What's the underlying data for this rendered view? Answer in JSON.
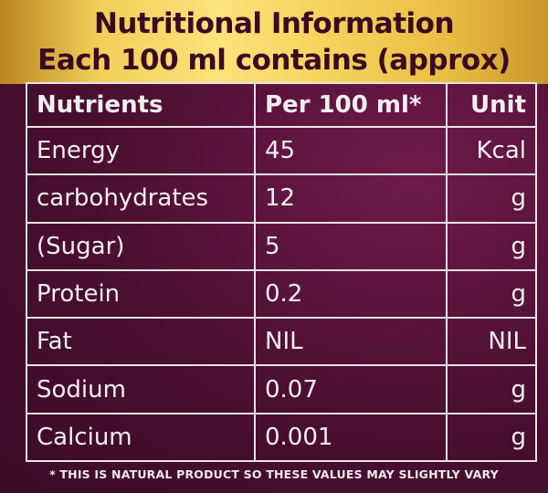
{
  "header": {
    "title": "Nutritional Information",
    "subtitle": "Each 100 ml contains (approx)"
  },
  "table": {
    "columns": [
      "Nutrients",
      "Per 100 ml*",
      "Unit"
    ],
    "rows": [
      {
        "nutrient": "Energy",
        "value": "45",
        "unit": "Kcal"
      },
      {
        "nutrient": "carbohydrates",
        "value": "12",
        "unit": "g"
      },
      {
        "nutrient": "(Sugar)",
        "value": "5",
        "unit": "g"
      },
      {
        "nutrient": "Protein",
        "value": "0.2",
        "unit": "g"
      },
      {
        "nutrient": "Fat",
        "value": "NIL",
        "unit": "NIL"
      },
      {
        "nutrient": "Sodium",
        "value": "0.07",
        "unit": "g"
      },
      {
        "nutrient": "Calcium",
        "value": "0.001",
        "unit": "g"
      }
    ]
  },
  "footnote": "* THIS IS NATURAL  PRODUCT SO THESE VALUES MAY SLIGHTLY VARY",
  "colors": {
    "header_gold": "#f6d35c",
    "background_maroon": "#4a0f30",
    "text_light": "#f4eef1"
  }
}
